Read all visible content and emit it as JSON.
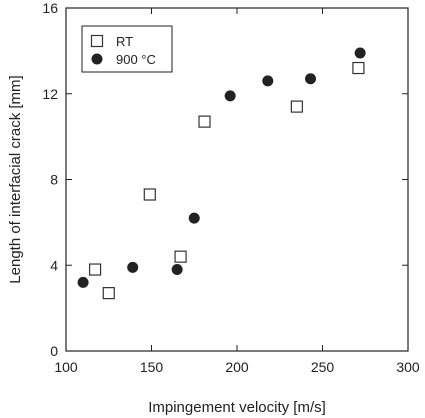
{
  "chart_data": {
    "type": "scatter",
    "title": "",
    "xlabel": "Impingement velocity [m/s]",
    "ylabel": "Length of interfacial crack [mm]",
    "xlim": [
      100,
      300
    ],
    "ylim": [
      0,
      16
    ],
    "xticks": [
      100,
      150,
      200,
      250,
      300
    ],
    "yticks": [
      0,
      4,
      8,
      12,
      16
    ],
    "grid": false,
    "legend_position": "top-left",
    "series": [
      {
        "name": "RT",
        "marker": "open-square",
        "color": "#333333",
        "points": [
          {
            "x": 117,
            "y": 3.8
          },
          {
            "x": 125,
            "y": 2.7
          },
          {
            "x": 149,
            "y": 7.3
          },
          {
            "x": 167,
            "y": 4.4
          },
          {
            "x": 181,
            "y": 10.7
          },
          {
            "x": 235,
            "y": 11.4
          },
          {
            "x": 271,
            "y": 13.2
          }
        ]
      },
      {
        "name": "900 °C",
        "marker": "filled-circle",
        "color": "#222222",
        "points": [
          {
            "x": 110,
            "y": 3.2
          },
          {
            "x": 139,
            "y": 3.9
          },
          {
            "x": 165,
            "y": 3.8
          },
          {
            "x": 175,
            "y": 6.2
          },
          {
            "x": 196,
            "y": 11.9
          },
          {
            "x": 218,
            "y": 12.6
          },
          {
            "x": 243,
            "y": 12.7
          },
          {
            "x": 272,
            "y": 13.9
          }
        ]
      }
    ]
  }
}
